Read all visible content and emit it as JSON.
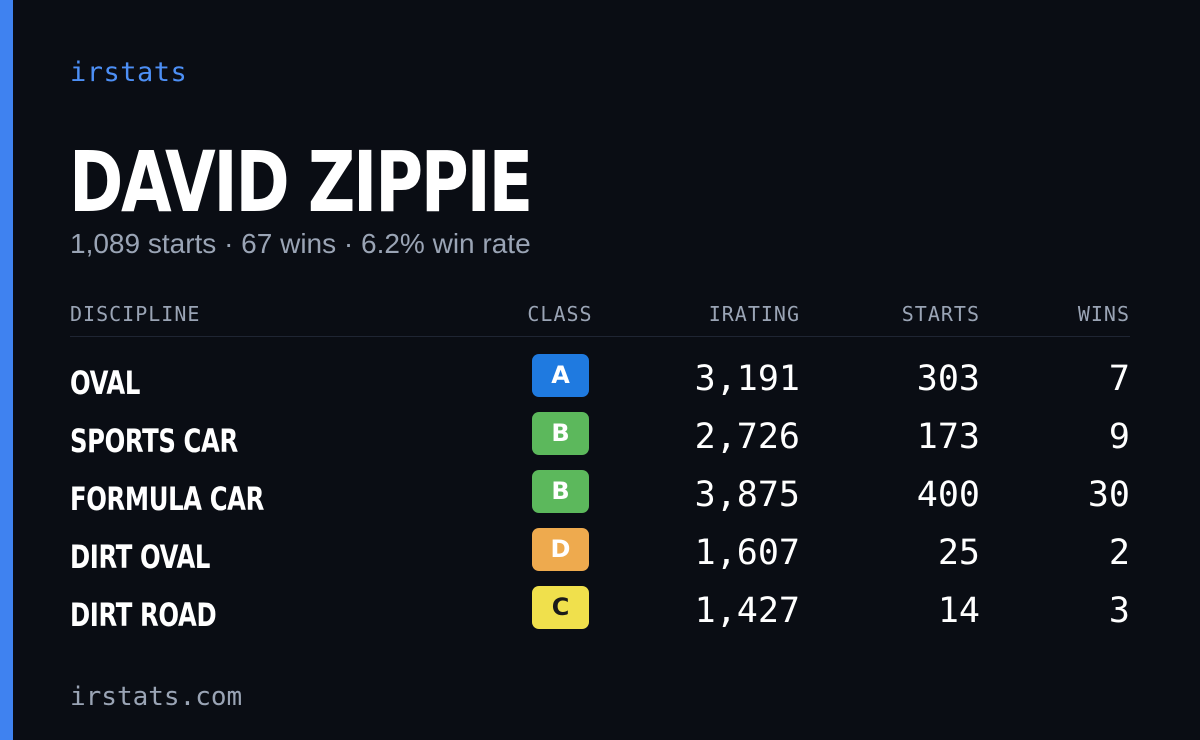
{
  "brand": "irstats",
  "player": {
    "name": "DAVID ZIPPIE",
    "summary": "1,089 starts · 67 wins · 6.2% win rate"
  },
  "table": {
    "headers": {
      "discipline": "DISCIPLINE",
      "class": "CLASS",
      "irating": "IRATING",
      "starts": "STARTS",
      "wins": "WINS"
    },
    "rows": [
      {
        "discipline": "OVAL",
        "class": "A",
        "class_color": "#1f7ae0",
        "irating": "3,191",
        "starts": "303",
        "wins": "7"
      },
      {
        "discipline": "SPORTS CAR",
        "class": "B",
        "class_color": "#5cb85c",
        "irating": "2,726",
        "starts": "173",
        "wins": "9"
      },
      {
        "discipline": "FORMULA CAR",
        "class": "B",
        "class_color": "#5cb85c",
        "irating": "3,875",
        "starts": "400",
        "wins": "30"
      },
      {
        "discipline": "DIRT OVAL",
        "class": "D",
        "class_color": "#eeaa4e",
        "irating": "1,607",
        "starts": "25",
        "wins": "2"
      },
      {
        "discipline": "DIRT ROAD",
        "class": "C",
        "class_color": "#f0e04c",
        "irating": "1,427",
        "starts": "14",
        "wins": "3"
      }
    ]
  },
  "footer": "irstats.com",
  "colors": {
    "background": "#0a0d14",
    "accent": "#3f82f0",
    "brand_text": "#4d8ff5",
    "muted_text": "#9aa4b5"
  }
}
